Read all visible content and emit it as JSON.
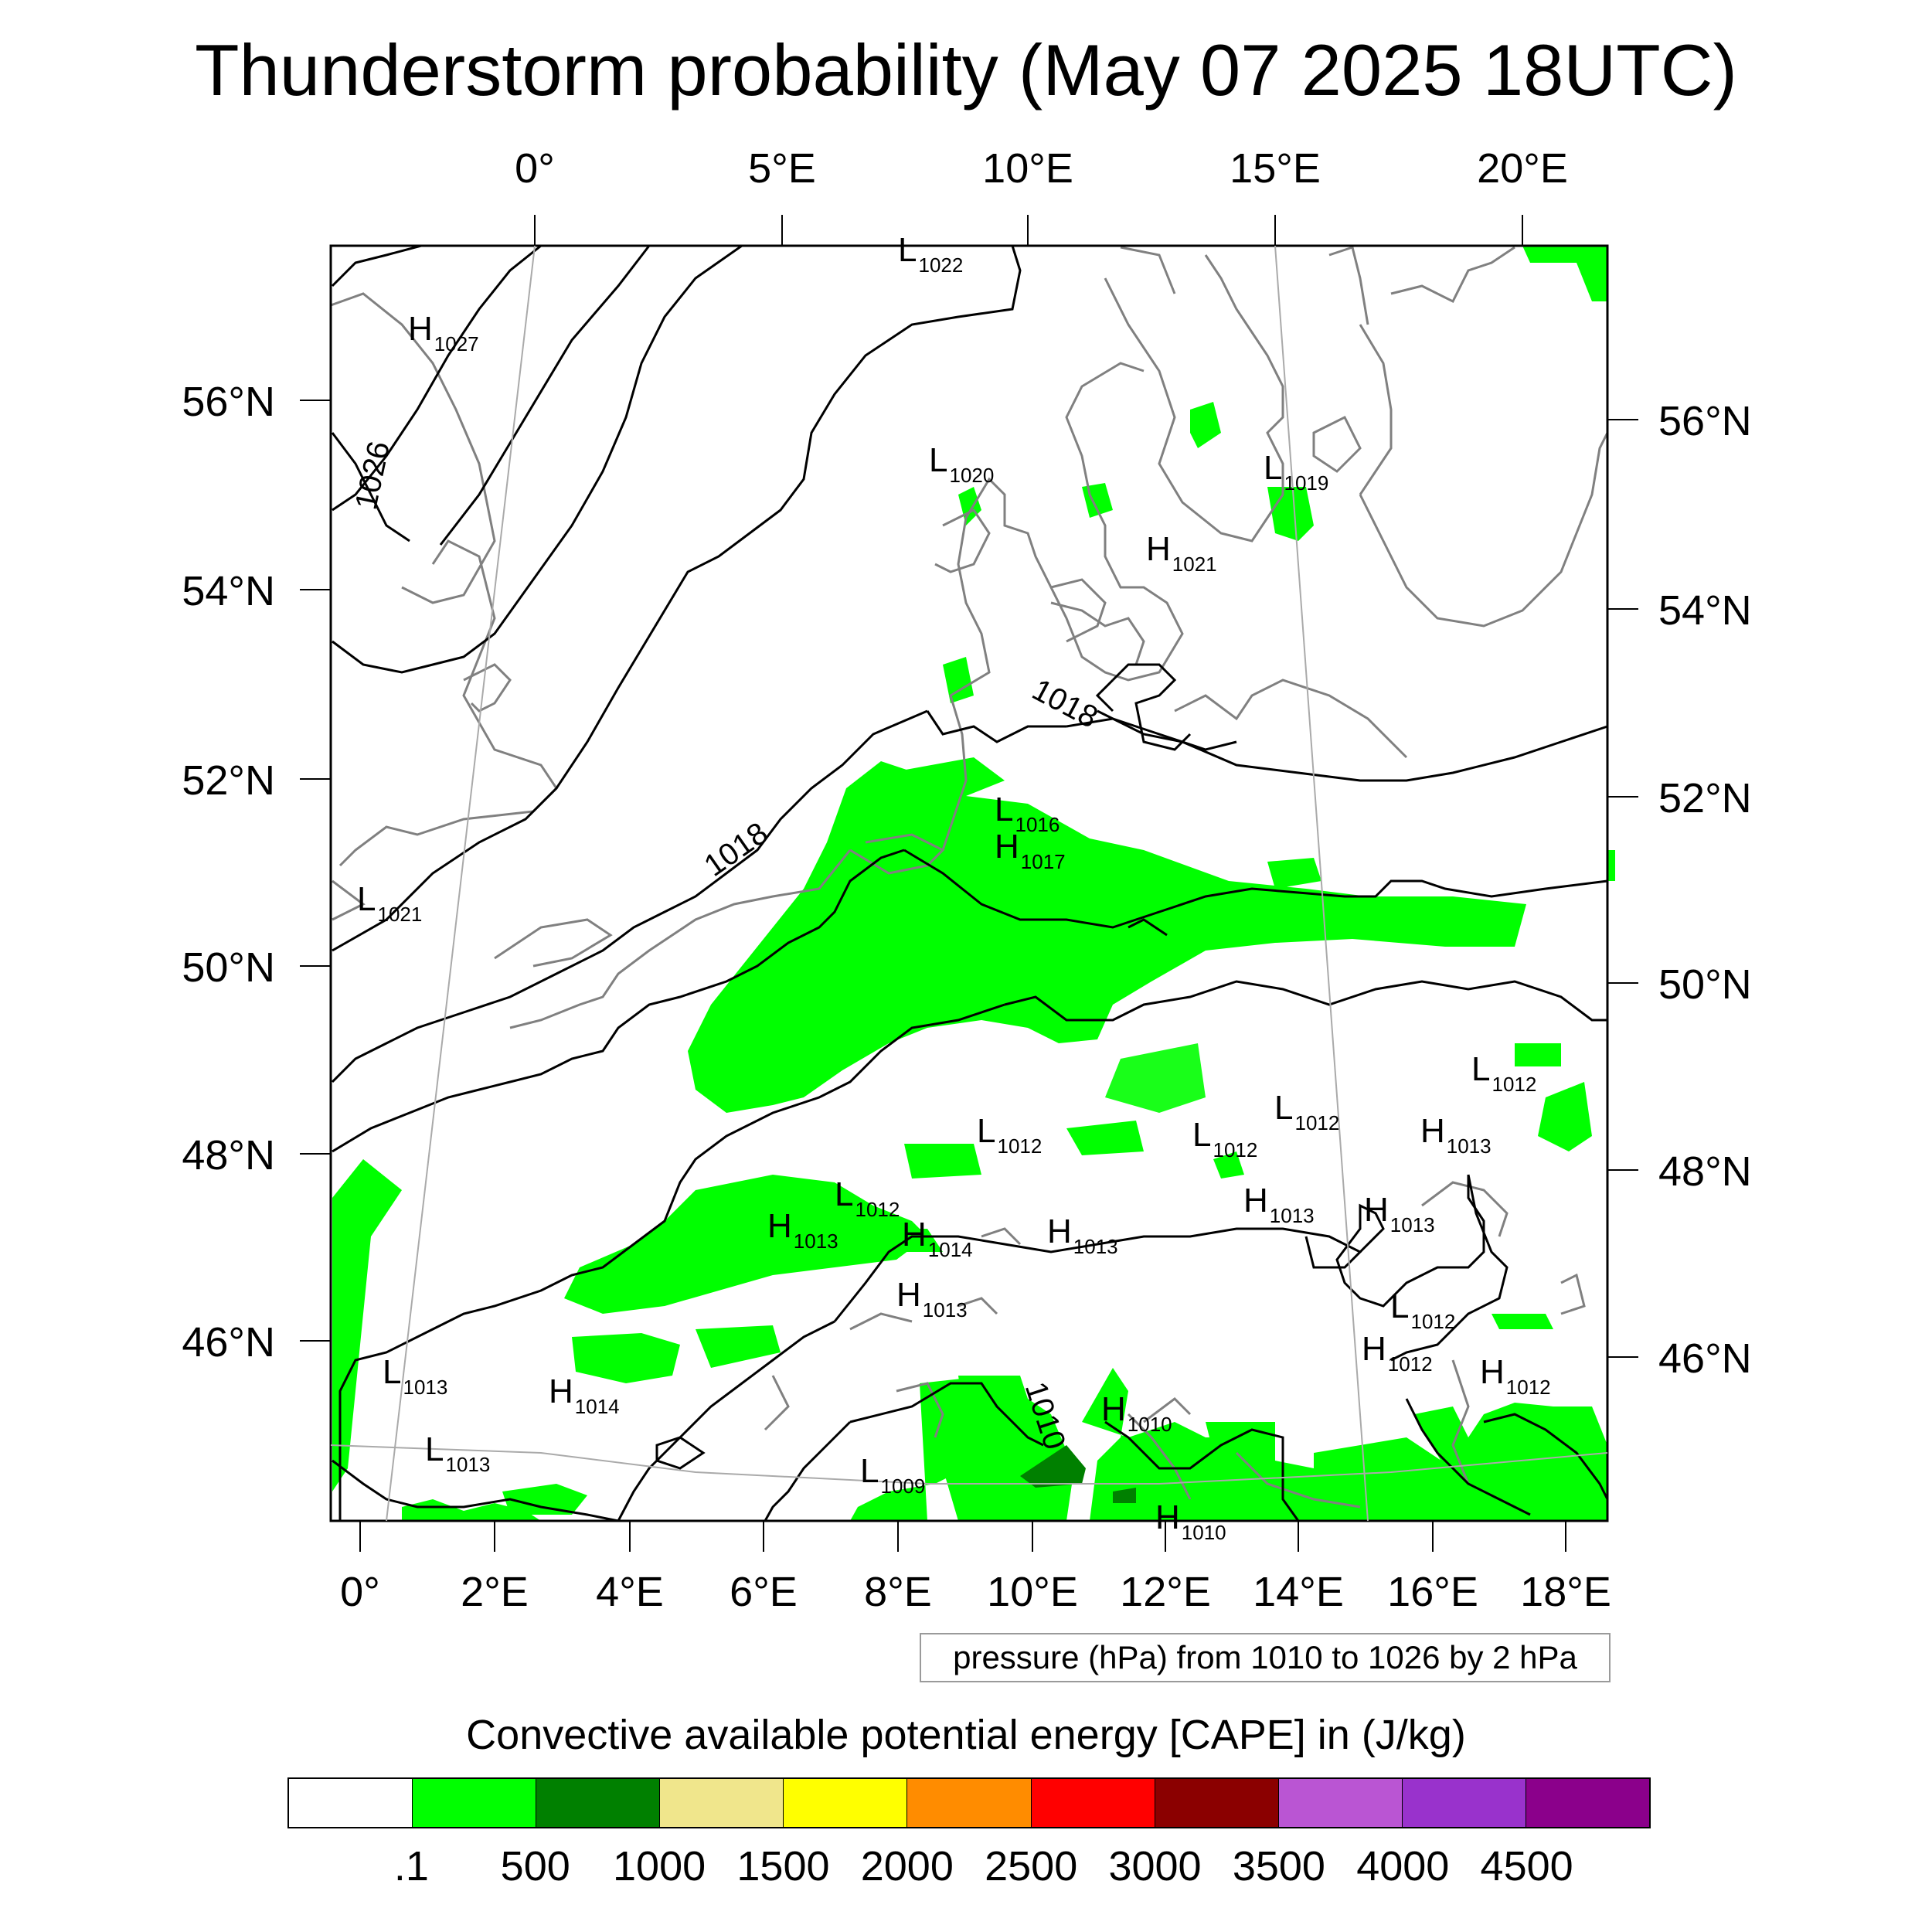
{
  "title": "Thunderstorm probability (May 07 2025 18UTC)",
  "top_axis_labels": [
    "0°",
    "5°E",
    "10°E",
    "15°E",
    "20°E"
  ],
  "bottom_axis_labels": [
    "0°",
    "2°E",
    "4°E",
    "6°E",
    "8°E",
    "10°E",
    "12°E",
    "14°E",
    "16°E",
    "18°E"
  ],
  "left_axis_labels": [
    "56°N",
    "54°N",
    "52°N",
    "50°N",
    "48°N",
    "46°N"
  ],
  "right_axis_labels": [
    "56°N",
    "54°N",
    "52°N",
    "50°N",
    "48°N",
    "46°N"
  ],
  "pressure_centers": [
    {
      "type": "H",
      "value": "1027"
    },
    {
      "type": "L",
      "value": "1022"
    },
    {
      "type": "L",
      "value": "1020"
    },
    {
      "type": "L",
      "value": "1019"
    },
    {
      "type": "H",
      "value": "1021"
    },
    {
      "type": "L",
      "value": "1016"
    },
    {
      "type": "H",
      "value": "1017"
    },
    {
      "type": "L",
      "value": "1021"
    },
    {
      "type": "L",
      "value": "1012"
    },
    {
      "type": "L",
      "value": "1012"
    },
    {
      "type": "L",
      "value": "1012"
    },
    {
      "type": "L",
      "value": "1012"
    },
    {
      "type": "H",
      "value": "1013"
    },
    {
      "type": "H",
      "value": "1013"
    },
    {
      "type": "L",
      "value": "1012"
    },
    {
      "type": "H",
      "value": "1014"
    },
    {
      "type": "H",
      "value": "1013"
    },
    {
      "type": "H",
      "value": "1013"
    },
    {
      "type": "H",
      "value": "1013"
    },
    {
      "type": "L",
      "value": "1012"
    },
    {
      "type": "H",
      "value": "1012"
    },
    {
      "type": "H",
      "value": "1012"
    },
    {
      "type": "L",
      "value": "1013"
    },
    {
      "type": "H",
      "value": "1014"
    },
    {
      "type": "L",
      "value": "1013"
    },
    {
      "type": "H",
      "value": "1010"
    },
    {
      "type": "L",
      "value": "1009"
    },
    {
      "type": "H",
      "value": "1010"
    },
    {
      "type": "H",
      "value": "1013"
    }
  ],
  "isobar_labels": [
    "1026",
    "1018",
    "1018",
    "1010"
  ],
  "pressure_note": "pressure (hPa) from 1010 to 1026 by 2 hPa",
  "colorbar": {
    "title": "Convective available potential energy [CAPE] in (J/kg)",
    "labels": [
      ".1",
      "500",
      "1000",
      "1500",
      "2000",
      "2500",
      "3000",
      "3500",
      "4000",
      "4500"
    ],
    "colors": [
      "#ffffff",
      "#00ff00",
      "#008000",
      "#f0e68c",
      "#ffff00",
      "#ff8c00",
      "#ff0000",
      "#8b0000",
      "#ba55d3",
      "#9932cc",
      "#8b008b"
    ]
  },
  "colors": {
    "cape_low": "#00ff00",
    "cape_mid": "#008000",
    "coast": "#808080",
    "isobar": "#000000"
  }
}
